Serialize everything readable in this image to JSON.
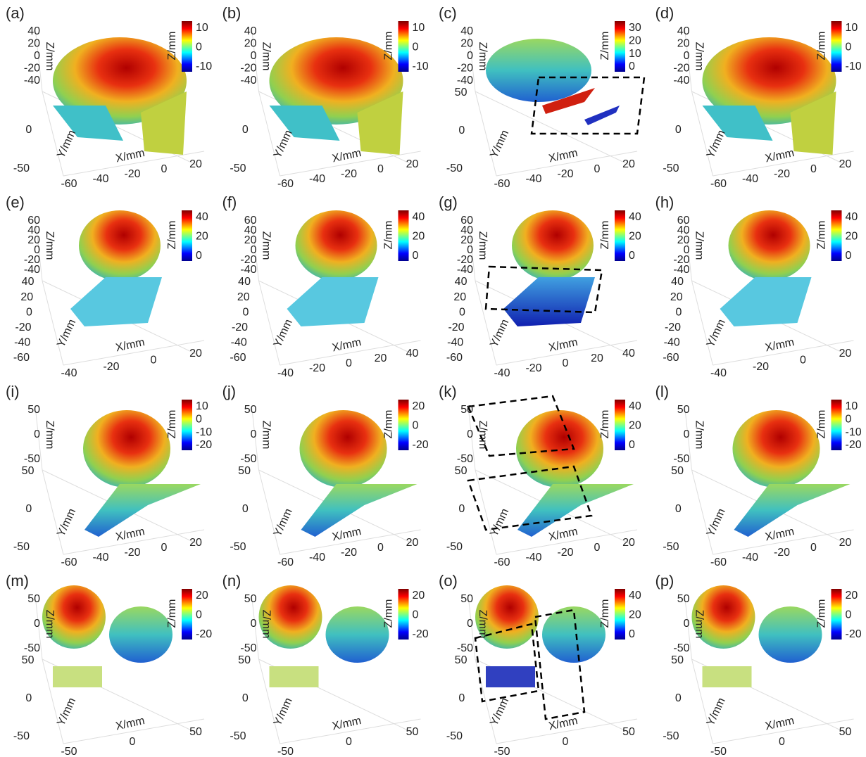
{
  "panels": [
    {
      "label": "(a)",
      "z_label": "Z/mm",
      "y_label": "Y/mm",
      "x_label": "X/mm",
      "colorbar_label": "Z/mm",
      "zticks": [
        40,
        20,
        0,
        -20,
        -40
      ],
      "yticks": [
        0,
        -50
      ],
      "xticks": [
        -60,
        -40,
        -20,
        0,
        20
      ],
      "colorbar_ticks": [
        10,
        0,
        -10
      ]
    },
    {
      "label": "(b)",
      "z_label": "Z/mm",
      "y_label": "Y/mm",
      "x_label": "X/mm",
      "colorbar_label": "Z/mm",
      "zticks": [
        40,
        20,
        0,
        -20,
        -40
      ],
      "yticks": [
        0,
        -50
      ],
      "xticks": [
        -60,
        -40,
        -20,
        0,
        20
      ],
      "colorbar_ticks": [
        10,
        0,
        -10
      ]
    },
    {
      "label": "(c)",
      "z_label": "Z/mm",
      "y_label": "Y/mm",
      "x_label": "X/mm",
      "colorbar_label": "Z/mm",
      "zticks": [
        40,
        20,
        0,
        -20,
        -40
      ],
      "yticks": [
        50,
        0,
        -50
      ],
      "xticks": [
        -60,
        -40,
        -20,
        0,
        20
      ],
      "colorbar_ticks": [
        30,
        20,
        10,
        0
      ]
    },
    {
      "label": "(d)",
      "z_label": "Z/mm",
      "y_label": "Y/mm",
      "x_label": "X/mm",
      "colorbar_label": "Z/mm",
      "zticks": [
        40,
        20,
        0,
        -20,
        -40
      ],
      "yticks": [
        0,
        -50
      ],
      "xticks": [
        -60,
        -40,
        -20,
        0,
        20
      ],
      "colorbar_ticks": [
        10,
        0,
        -10
      ]
    },
    {
      "label": "(e)",
      "z_label": "Z/mm",
      "y_label": "Y/mm",
      "x_label": "X/mm",
      "colorbar_label": "Z/mm",
      "zticks": [
        60,
        40,
        20,
        0,
        -20,
        -40
      ],
      "yticks": [
        40,
        20,
        0,
        -20,
        -40,
        -60
      ],
      "xticks": [
        -40,
        -20,
        0,
        20
      ],
      "colorbar_ticks": [
        40,
        20,
        0
      ]
    },
    {
      "label": "(f)",
      "z_label": "Z/mm",
      "y_label": "Y/mm",
      "x_label": "X/mm",
      "colorbar_label": "Z/mm",
      "zticks": [
        60,
        40,
        20,
        0,
        -20,
        -40
      ],
      "yticks": [
        40,
        20,
        0,
        -20,
        -40,
        -60
      ],
      "xticks": [
        -40,
        -20,
        0,
        20,
        40
      ],
      "colorbar_ticks": [
        40,
        20,
        0
      ]
    },
    {
      "label": "(g)",
      "z_label": "Z/mm",
      "y_label": "Y/mm",
      "x_label": "X/mm",
      "colorbar_label": "Z/mm",
      "zticks": [
        60,
        40,
        20,
        0,
        -20,
        -40
      ],
      "yticks": [
        40,
        20,
        0,
        -20,
        -40,
        -60
      ],
      "xticks": [
        -40,
        -20,
        0,
        20,
        40
      ],
      "colorbar_ticks": [
        40,
        20,
        0
      ]
    },
    {
      "label": "(h)",
      "z_label": "Z/mm",
      "y_label": "Y/mm",
      "x_label": "X/mm",
      "colorbar_label": "Z/mm",
      "zticks": [
        60,
        40,
        20,
        0,
        -20,
        -40
      ],
      "yticks": [
        40,
        20,
        0,
        -20,
        -40,
        -60
      ],
      "xticks": [
        -40,
        -20,
        0,
        20
      ],
      "colorbar_ticks": [
        40,
        20,
        0
      ]
    },
    {
      "label": "(i)",
      "z_label": "Z/mm",
      "y_label": "Y/mm",
      "x_label": "X/mm",
      "colorbar_label": "Z/mm",
      "zticks": [
        50,
        0,
        -50
      ],
      "yticks": [
        50,
        0,
        -50
      ],
      "xticks": [
        -60,
        -40,
        -20,
        0,
        20
      ],
      "colorbar_ticks": [
        10,
        0,
        -10,
        -20
      ]
    },
    {
      "label": "(j)",
      "z_label": "Z/mm",
      "y_label": "Y/mm",
      "x_label": "X/mm",
      "colorbar_label": "Z/mm",
      "zticks": [
        50,
        0,
        -50
      ],
      "yticks": [
        50,
        0,
        -50
      ],
      "xticks": [
        -60,
        -40,
        -20,
        0,
        20
      ],
      "colorbar_ticks": [
        20,
        0,
        -20
      ]
    },
    {
      "label": "(k)",
      "z_label": "Z/mm",
      "y_label": "Y/mm",
      "x_label": "X/mm",
      "colorbar_label": "Z/mm",
      "zticks": [
        50,
        0,
        -50
      ],
      "yticks": [
        50,
        0,
        -50
      ],
      "xticks": [
        -60,
        -40,
        -20,
        0,
        20
      ],
      "colorbar_ticks": [
        40,
        20,
        0
      ]
    },
    {
      "label": "(l)",
      "z_label": "Z/mm",
      "y_label": "Y/mm",
      "x_label": "X/mm",
      "colorbar_label": "Z/mm",
      "zticks": [
        50,
        0,
        -50
      ],
      "yticks": [
        50,
        0,
        -50
      ],
      "xticks": [
        -60,
        -40,
        -20,
        0,
        20
      ],
      "colorbar_ticks": [
        10,
        0,
        -10,
        -20
      ]
    },
    {
      "label": "(m)",
      "z_label": "Z/mm",
      "y_label": "Y/mm",
      "x_label": "X/mm",
      "colorbar_label": "Z/mm",
      "zticks": [
        50,
        0,
        -50
      ],
      "yticks": [
        50,
        0,
        -50
      ],
      "xticks": [
        -50,
        0,
        50
      ],
      "colorbar_ticks": [
        20,
        0,
        -20
      ]
    },
    {
      "label": "(n)",
      "z_label": "Z/mm",
      "y_label": "Y/mm",
      "x_label": "X/mm",
      "colorbar_label": "Z/mm",
      "zticks": [
        50,
        0,
        -50
      ],
      "yticks": [
        50,
        0,
        -50
      ],
      "xticks": [
        -50,
        0,
        50
      ],
      "colorbar_ticks": [
        20,
        0,
        -20
      ]
    },
    {
      "label": "(o)",
      "z_label": "Z/mm",
      "y_label": "Y/mm",
      "x_label": "X/mm",
      "colorbar_label": "Z/mm",
      "zticks": [
        50,
        0,
        -50
      ],
      "yticks": [
        50,
        0,
        -50
      ],
      "xticks": [
        -50,
        0,
        50
      ],
      "colorbar_ticks": [
        40,
        20,
        0
      ]
    },
    {
      "label": "(p)",
      "z_label": "Z/mm",
      "y_label": "Y/mm",
      "x_label": "X/mm",
      "colorbar_label": "Z/mm",
      "zticks": [
        50,
        0,
        -50
      ],
      "yticks": [
        50,
        0,
        -50
      ],
      "xticks": [
        -50,
        0,
        50
      ],
      "colorbar_ticks": [
        20,
        0,
        -20
      ]
    }
  ]
}
